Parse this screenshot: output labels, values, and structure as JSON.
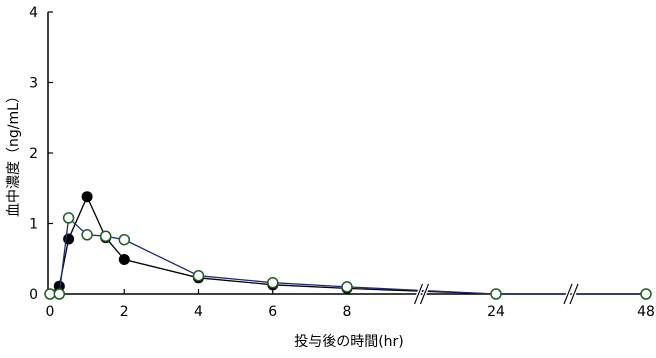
{
  "chart_data": {
    "type": "line",
    "title": "",
    "xlabel": "投与後の時間(hr)",
    "ylabel": "血中濃度（ng/mL）",
    "ylim": [
      0,
      4
    ],
    "y_ticks": [
      "0",
      "1",
      "2",
      "3",
      "4"
    ],
    "x_ticks": [
      "0",
      "2",
      "4",
      "6",
      "8",
      "24",
      "48"
    ],
    "x_axis_breaks": [
      {
        "between": [
          8,
          24
        ]
      },
      {
        "between": [
          24,
          48
        ]
      }
    ],
    "grid": false,
    "legend": "none",
    "series": [
      {
        "marker": "filled-circle",
        "line_color": "#000000",
        "marker_fill": "#000000",
        "points": [
          {
            "x": 0,
            "y": 0
          },
          {
            "x": 0.25,
            "y": 0.11
          },
          {
            "x": 0.5,
            "y": 0.78
          },
          {
            "x": 1,
            "y": 1.38
          },
          {
            "x": 1.5,
            "y": 0.8
          },
          {
            "x": 2,
            "y": 0.49
          },
          {
            "x": 4,
            "y": 0.23
          },
          {
            "x": 6,
            "y": 0.13
          },
          {
            "x": 8,
            "y": 0.08
          },
          {
            "x": 24,
            "y": 0
          },
          {
            "x": 48,
            "y": 0
          }
        ]
      },
      {
        "marker": "open-circle",
        "line_color": "#1f2a7a",
        "marker_fill": "#ffffff",
        "marker_stroke": "#1b5e20",
        "points": [
          {
            "x": 0,
            "y": 0
          },
          {
            "x": 0.25,
            "y": 0
          },
          {
            "x": 0.5,
            "y": 1.08
          },
          {
            "x": 1,
            "y": 0.84
          },
          {
            "x": 1.5,
            "y": 0.82
          },
          {
            "x": 2,
            "y": 0.77
          },
          {
            "x": 4,
            "y": 0.26
          },
          {
            "x": 6,
            "y": 0.16
          },
          {
            "x": 8,
            "y": 0.1
          },
          {
            "x": 24,
            "y": 0
          },
          {
            "x": 48,
            "y": 0
          }
        ]
      }
    ]
  }
}
